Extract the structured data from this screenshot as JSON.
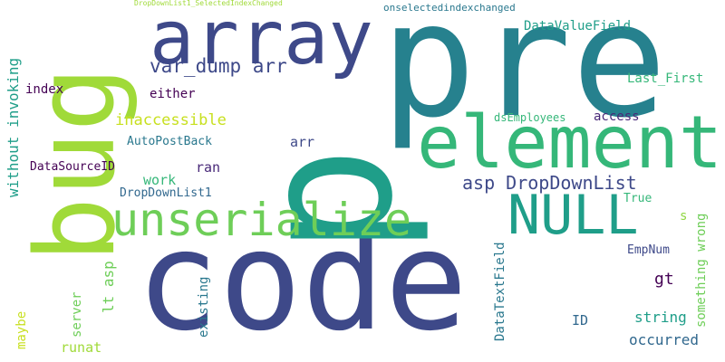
{
  "palette": {
    "navy": "#3e4989",
    "teal": "#26818e",
    "green": "#35b779",
    "lime": "#a0da39",
    "purple": "#440154",
    "plum": "#482878",
    "blue": "#31688e",
    "aqua": "#1f9e89",
    "sea": "#2a788e",
    "yellowgreen": "#90d743",
    "lightgreen": "#6ece58",
    "yellow": "#c8e020"
  },
  "words": {
    "code": "code",
    "pre": "pre",
    "p": "p",
    "bug": "bug",
    "array": "array",
    "element": "element",
    "unserialize": "unserialize",
    "null": "NULL",
    "var_dump_arr": "var_dump arr",
    "asp_dropdownlist": "asp DropDownList",
    "inaccessible": "inaccessible",
    "dataValueField": "DataValueField",
    "onselectedindexchanged": "onselectedindexchanged",
    "dropdownlist1_selectedindexchanged": "DropDownList1_SelectedIndexChanged",
    "last_first": "Last_First",
    "index": "index",
    "either": "either",
    "access": "access",
    "dsEmployees": "dsEmployees",
    "autopostback": "AutoPostBack",
    "arr": "arr",
    "datasourceid": "DataSourceID",
    "ran": "ran",
    "work": "work",
    "dropdownlist1": "DropDownList1",
    "true": "True",
    "s": "s",
    "something_wrong": "something wrong",
    "without_invoking": "without invoking",
    "lt_asp": "lt asp",
    "empnum": "EmpNum",
    "gt": "gt",
    "datatextfield": "DataTextField",
    "string": "string",
    "occurred": "occurred",
    "id": "ID",
    "existing": "existing",
    "server": "server",
    "maybe": "maybe",
    "runat": "runat"
  }
}
